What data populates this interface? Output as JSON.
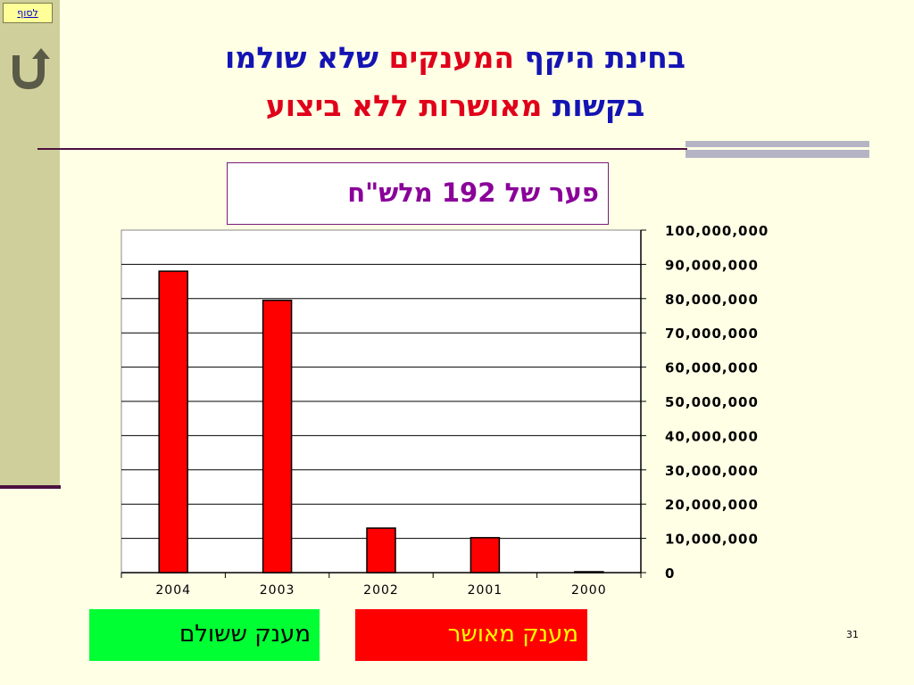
{
  "nav": {
    "to_end_label": "לסוף"
  },
  "title": {
    "line1_part1": "בחינת היקף",
    "line1_part2": "המענקים",
    "line1_part3": "שלא שולמו",
    "line2_part1": "בקשות",
    "line2_part2": "מאושרות ללא ביצוע"
  },
  "gap_note": "פער של 192  מלש\"ח",
  "legend": {
    "paid": "מענק   ששולם",
    "approved": "מענק מאושר"
  },
  "page_number": "31",
  "colors": {
    "background": "#ffffe6",
    "sidebar": "#cfcf9c",
    "bar": "#ff0000",
    "title_blue": "#1414b4",
    "title_red": "#e0001a",
    "gap_text": "#8a0099",
    "legend_paid": "#00ff33",
    "legend_approved": "#ff0000"
  },
  "chart_data": {
    "type": "bar",
    "categories": [
      "2004",
      "2003",
      "2002",
      "2001",
      "2000"
    ],
    "series": [
      {
        "values": [
          88000000,
          79500000,
          13000000,
          10200000,
          150000
        ]
      }
    ],
    "y_tick_labels": [
      "0",
      "10,000,000",
      "20,000,000",
      "30,000,000",
      "40,000,000",
      "50,000,000",
      "60,000,000",
      "70,000,000",
      "80,000,000",
      "90,000,000",
      "100,000,000"
    ],
    "ylim": [
      0,
      100000000
    ],
    "y_axis_position": "right",
    "grid": true,
    "title": "",
    "xlabel": "",
    "ylabel": ""
  }
}
